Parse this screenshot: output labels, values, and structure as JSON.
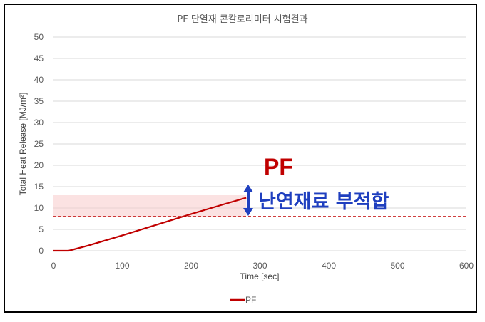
{
  "chart_data": {
    "type": "line",
    "title": "PF 단열재 콘칼로리미터 시험결과",
    "xlabel": "Time [sec]",
    "ylabel": "Total Heat Release [MJ/m²]",
    "xlim": [
      0,
      600
    ],
    "ylim": [
      0,
      50
    ],
    "x_ticks": [
      "0",
      "100",
      "200",
      "300",
      "400",
      "500",
      "600"
    ],
    "y_ticks": [
      "0",
      "5",
      "10",
      "15",
      "20",
      "25",
      "30",
      "35",
      "40",
      "45",
      "50"
    ],
    "grid": "horizontal",
    "legend_position": "bottom",
    "series": [
      {
        "name": "PF",
        "color": "#c00000",
        "x": [
          0,
          22,
          50,
          100,
          150,
          200,
          250,
          280
        ],
        "values": [
          0,
          0,
          1.2,
          3.6,
          6.1,
          8.6,
          11.0,
          12.4
        ]
      }
    ],
    "reference_line": {
      "y": 8,
      "color": "#c00000",
      "style": "dashed"
    },
    "shaded_band": {
      "y_range": [
        8,
        13
      ],
      "color": "#f8cbcb"
    },
    "annotations": [
      {
        "text": "PF",
        "color": "#c00000"
      },
      {
        "text": "난연재료 부적합",
        "color": "#1f3fbf"
      }
    ]
  }
}
